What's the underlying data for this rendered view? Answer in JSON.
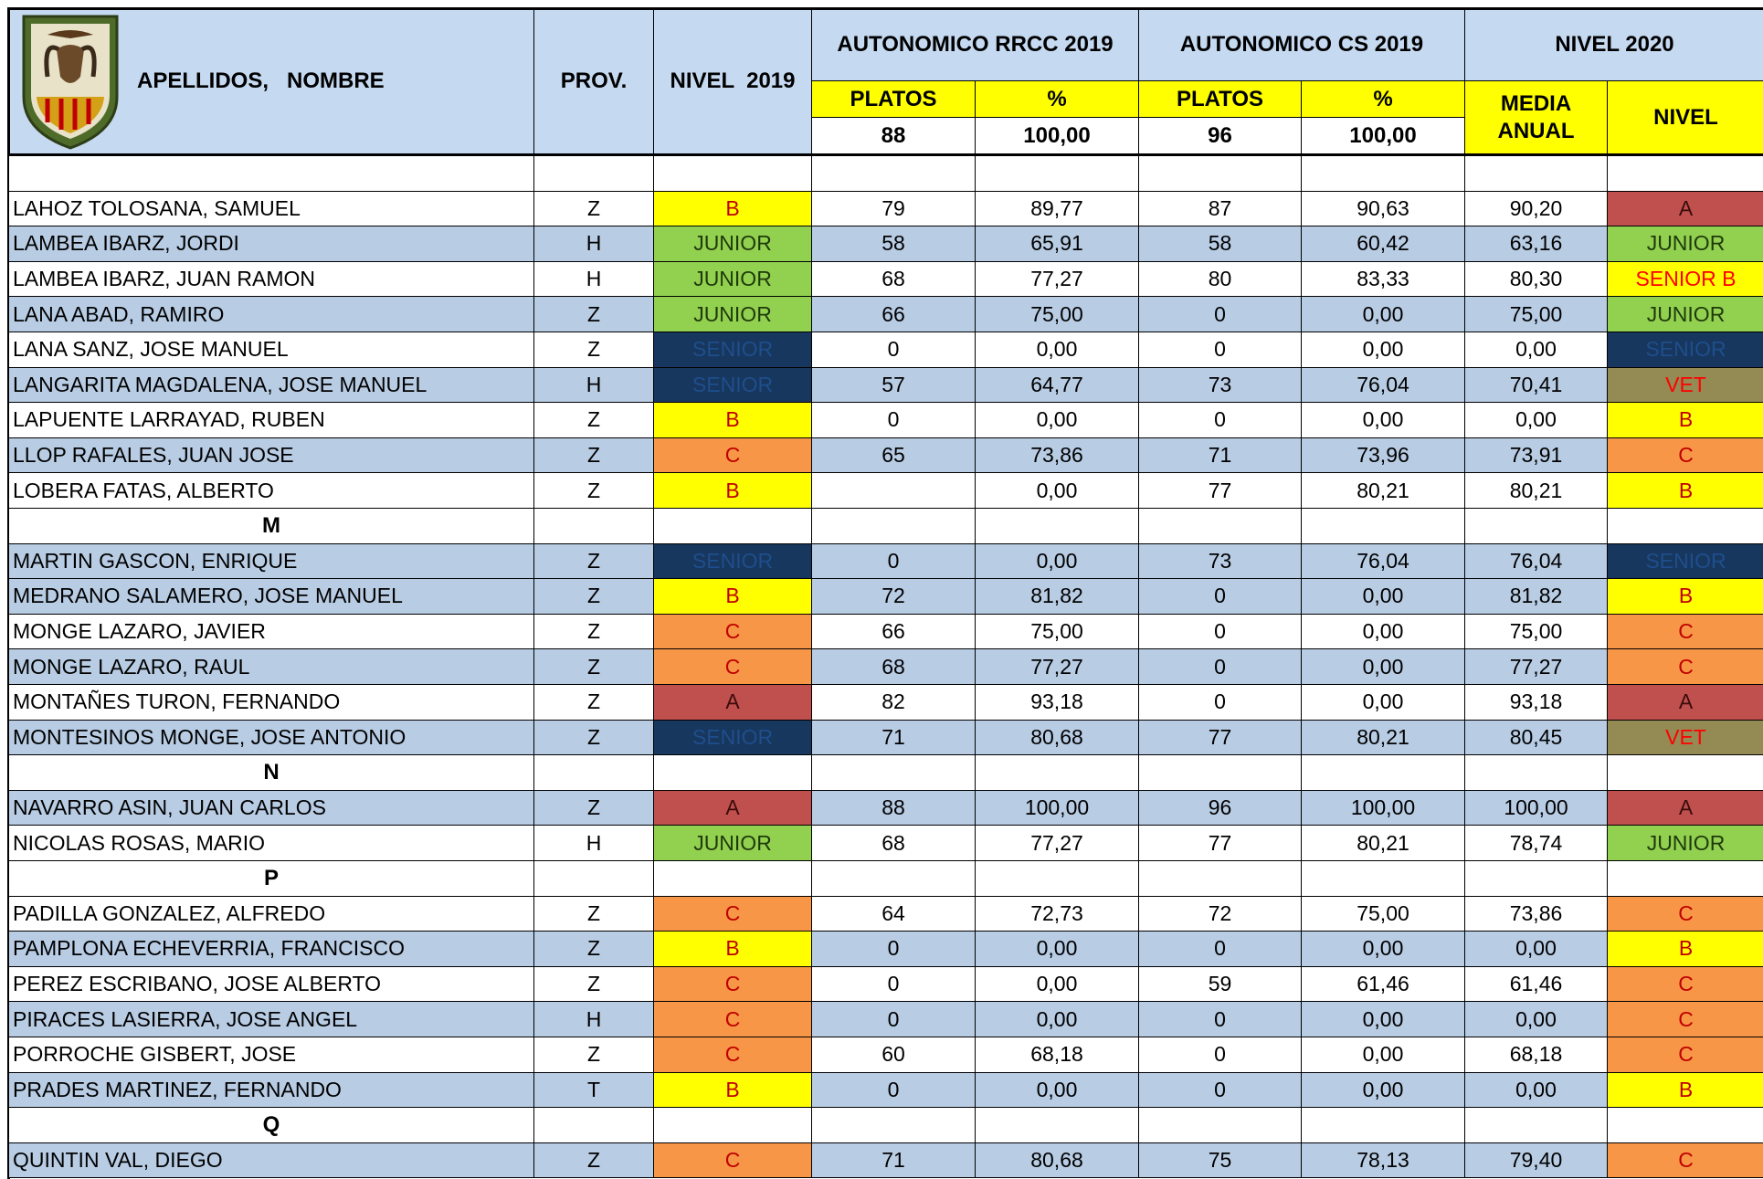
{
  "header": {
    "name": "APELLIDOS,   NOMBRE",
    "prov": "PROV.",
    "nivel2019": "NIVEL  2019",
    "rrcc": "AUTONOMICO RRCC 2019",
    "cs": "AUTONOMICO CS 2019",
    "nivel2020": "NIVEL 2020",
    "platos1": "PLATOS",
    "pct1": "%",
    "platos2": "PLATOS",
    "pct2": "%",
    "media": "MEDIA ANUAL",
    "nivel": "NIVEL",
    "max1": "88",
    "maxpct1": "100,00",
    "max2": "96",
    "maxpct2": "100,00"
  },
  "level_colors": {
    "A": [
      "#c0504d",
      "#3a0c0c"
    ],
    "B": [
      "#ffff00",
      "#c00000"
    ],
    "C": [
      "#f79646",
      "#c00000"
    ],
    "JUNIOR": [
      "#92d050",
      "#1f3a0a"
    ],
    "SENIOR": [
      "#17375e",
      "#1f4e8c"
    ],
    "SENIOR B": [
      "#ffff00",
      "#ff0000"
    ],
    "VET": [
      "#948a54",
      "#ff0000"
    ]
  },
  "rows": [
    {
      "name": "LAHOZ TOLOSANA, SAMUEL",
      "prov": "Z",
      "nivel2019": "B",
      "rrcc_platos": "79",
      "rrcc_pct": "89,77",
      "cs_platos": "87",
      "cs_pct": "90,63",
      "media": "90,20",
      "nivel2020": "A",
      "row_color": "#ffffff"
    },
    {
      "name": "LAMBEA IBARZ, JORDI",
      "prov": "H",
      "nivel2019": "JUNIOR",
      "rrcc_platos": "58",
      "rrcc_pct": "65,91",
      "cs_platos": "58",
      "cs_pct": "60,42",
      "media": "63,16",
      "nivel2020": "JUNIOR",
      "row_color": "#b8cce4"
    },
    {
      "name": "LAMBEA IBARZ, JUAN RAMON",
      "prov": "H",
      "nivel2019": "JUNIOR",
      "rrcc_platos": "68",
      "rrcc_pct": "77,27",
      "cs_platos": "80",
      "cs_pct": "83,33",
      "media": "80,30",
      "nivel2020": "SENIOR B",
      "row_color": "#ffffff"
    },
    {
      "name": "LANA ABAD, RAMIRO",
      "prov": "Z",
      "nivel2019": "JUNIOR",
      "rrcc_platos": "66",
      "rrcc_pct": "75,00",
      "cs_platos": "0",
      "cs_pct": "0,00",
      "media": "75,00",
      "nivel2020": "JUNIOR",
      "row_color": "#b8cce4"
    },
    {
      "name": "LANA SANZ, JOSE MANUEL",
      "prov": "Z",
      "nivel2019": "SENIOR",
      "rrcc_platos": "0",
      "rrcc_pct": "0,00",
      "cs_platos": "0",
      "cs_pct": "0,00",
      "media": "0,00",
      "nivel2020": "SENIOR",
      "row_color": "#ffffff"
    },
    {
      "name": "LANGARITA MAGDALENA, JOSE MANUEL",
      "prov": "H",
      "nivel2019": "SENIOR",
      "rrcc_platos": "57",
      "rrcc_pct": "64,77",
      "cs_platos": "73",
      "cs_pct": "76,04",
      "media": "70,41",
      "nivel2020": "VET",
      "row_color": "#b8cce4"
    },
    {
      "name": "LAPUENTE LARRAYAD, RUBEN",
      "prov": "Z",
      "nivel2019": "B",
      "rrcc_platos": "0",
      "rrcc_pct": "0,00",
      "cs_platos": "0",
      "cs_pct": "0,00",
      "media": "0,00",
      "nivel2020": "B",
      "row_color": "#ffffff"
    },
    {
      "name": "LLOP RAFALES, JUAN JOSE",
      "prov": "Z",
      "nivel2019": "C",
      "rrcc_platos": "65",
      "rrcc_pct": "73,86",
      "cs_platos": "71",
      "cs_pct": "73,96",
      "media": "73,91",
      "nivel2020": "C",
      "row_color": "#b8cce4"
    },
    {
      "name": "LOBERA FATAS, ALBERTO",
      "prov": "Z",
      "nivel2019": "B",
      "rrcc_pct": "0,00",
      "cs_platos": "77",
      "cs_pct": "80,21",
      "media": "80,21",
      "nivel2020": "B",
      "row_color": "#ffffff"
    },
    {
      "letter": "M"
    },
    {
      "name": "MARTIN GASCON, ENRIQUE",
      "prov": "Z",
      "nivel2019": "SENIOR",
      "rrcc_platos": "0",
      "rrcc_pct": "0,00",
      "cs_platos": "73",
      "cs_pct": "76,04",
      "media": "76,04",
      "nivel2020": "SENIOR",
      "row_color": "#b8cce4"
    },
    {
      "name": "MEDRANO SALAMERO, JOSE MANUEL",
      "prov": "Z",
      "nivel2019": "B",
      "rrcc_platos": "72",
      "rrcc_pct": "81,82",
      "cs_platos": "0",
      "cs_pct": "0,00",
      "media": "81,82",
      "nivel2020": "B",
      "row_color": "#b8cce4"
    },
    {
      "name": "MONGE LAZARO, JAVIER",
      "prov": "Z",
      "nivel2019": "C",
      "rrcc_platos": "66",
      "rrcc_pct": "75,00",
      "cs_platos": "0",
      "cs_pct": "0,00",
      "media": "75,00",
      "nivel2020": "C",
      "row_color": "#ffffff"
    },
    {
      "name": "MONGE LAZARO, RAUL",
      "prov": "Z",
      "nivel2019": "C",
      "rrcc_platos": "68",
      "rrcc_pct": "77,27",
      "cs_platos": "0",
      "cs_pct": "0,00",
      "media": "77,27",
      "nivel2020": "C",
      "row_color": "#b8cce4"
    },
    {
      "name": "MONTAÑES TURON, FERNANDO",
      "prov": "Z",
      "nivel2019": "A",
      "rrcc_platos": "82",
      "rrcc_pct": "93,18",
      "cs_platos": "0",
      "cs_pct": "0,00",
      "media": "93,18",
      "nivel2020": "A",
      "row_color": "#ffffff"
    },
    {
      "name": "MONTESINOS MONGE, JOSE ANTONIO",
      "prov": "Z",
      "nivel2019": "SENIOR",
      "rrcc_platos": "71",
      "rrcc_pct": "80,68",
      "cs_platos": "77",
      "cs_pct": "80,21",
      "media": "80,45",
      "nivel2020": "VET",
      "row_color": "#b8cce4"
    },
    {
      "letter": "N"
    },
    {
      "name": "NAVARRO ASIN, JUAN CARLOS",
      "prov": "Z",
      "nivel2019": "A",
      "rrcc_platos": "88",
      "rrcc_pct": "100,00",
      "cs_platos": "96",
      "cs_pct": "100,00",
      "media": "100,00",
      "nivel2020": "A",
      "row_color": "#b8cce4"
    },
    {
      "name": "NICOLAS ROSAS, MARIO",
      "prov": "H",
      "nivel2019": "JUNIOR",
      "rrcc_platos": "68",
      "rrcc_pct": "77,27",
      "cs_platos": "77",
      "cs_pct": "80,21",
      "media": "78,74",
      "nivel2020": "JUNIOR",
      "row_color": "#ffffff"
    },
    {
      "letter": "P"
    },
    {
      "name": "PADILLA GONZALEZ, ALFREDO",
      "prov": "Z",
      "nivel2019": "C",
      "rrcc_platos": "64",
      "rrcc_pct": "72,73",
      "cs_platos": "72",
      "cs_pct": "75,00",
      "media": "73,86",
      "nivel2020": "C",
      "row_color": "#ffffff"
    },
    {
      "name": "PAMPLONA ECHEVERRIA, FRANCISCO",
      "prov": "Z",
      "nivel2019": "B",
      "rrcc_platos": "0",
      "rrcc_pct": "0,00",
      "cs_platos": "0",
      "cs_pct": "0,00",
      "media": "0,00",
      "nivel2020": "B",
      "row_color": "#b8cce4"
    },
    {
      "name": "PEREZ ESCRIBANO, JOSE ALBERTO",
      "prov": "Z",
      "nivel2019": "C",
      "rrcc_platos": "0",
      "rrcc_pct": "0,00",
      "cs_platos": "59",
      "cs_pct": "61,46",
      "media": "61,46",
      "nivel2020": "C",
      "row_color": "#ffffff"
    },
    {
      "name": "PIRACES LASIERRA, JOSE ANGEL",
      "prov": "H",
      "nivel2019": "C",
      "rrcc_platos": "0",
      "rrcc_pct": "0,00",
      "cs_platos": "0",
      "cs_pct": "0,00",
      "media": "0,00",
      "nivel2020": "C",
      "row_color": "#b8cce4"
    },
    {
      "name": "PORROCHE GISBERT, JOSE",
      "prov": "Z",
      "nivel2019": "C",
      "rrcc_platos": "60",
      "rrcc_pct": "68,18",
      "cs_platos": "0",
      "cs_pct": "0,00",
      "media": "68,18",
      "nivel2020": "C",
      "row_color": "#ffffff"
    },
    {
      "name": "PRADES MARTINEZ, FERNANDO",
      "prov": "T",
      "nivel2019": "B",
      "rrcc_platos": "0",
      "rrcc_pct": "0,00",
      "cs_platos": "0",
      "cs_pct": "0,00",
      "media": "0,00",
      "nivel2020": "B",
      "row_color": "#b8cce4"
    },
    {
      "letter": "Q"
    },
    {
      "name": "QUINTIN VAL, DIEGO",
      "prov": "Z",
      "nivel2019": "C",
      "rrcc_platos": "71",
      "rrcc_pct": "80,68",
      "cs_platos": "75",
      "cs_pct": "78,13",
      "media": "79,40",
      "nivel2020": "C",
      "row_color": "#b8cce4"
    }
  ]
}
